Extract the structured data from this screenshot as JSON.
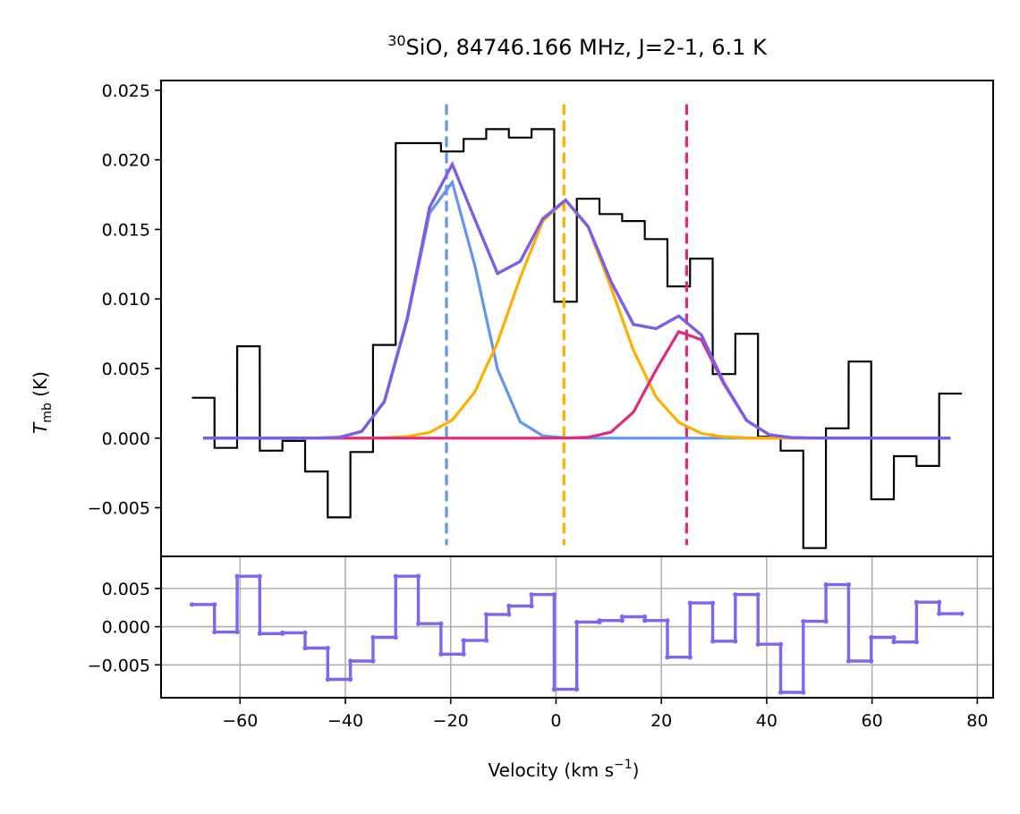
{
  "chart_data": {
    "type": "line",
    "title": {
      "isotope": "30",
      "text": "SiO, 84746.166 MHz, J=2-1, 6.1 K"
    },
    "xlabel": {
      "text": "Velocity (km s",
      "sup": "−1",
      "close": ")"
    },
    "ylabel": {
      "symbol": "T",
      "sub": "mb",
      "unit": " (K)"
    },
    "xlim": [
      -75,
      83
    ],
    "x_ticks": [
      -60,
      -40,
      -20,
      0,
      20,
      40,
      60,
      80
    ],
    "x_tick_labels": [
      "−60",
      "−40",
      "−20",
      "0",
      "20",
      "40",
      "60",
      "80"
    ],
    "main_panel": {
      "ylim": [
        -0.0085,
        0.0257
      ],
      "y_ticks": [
        -0.005,
        0.0,
        0.005,
        0.01,
        0.015,
        0.02,
        0.025
      ],
      "y_tick_labels": [
        "−0.005",
        "0.000",
        "0.005",
        "0.010",
        "0.015",
        "0.020",
        "0.025"
      ],
      "grid": false,
      "spectrum": {
        "color": "#000000",
        "style": "steps",
        "bin_width": 4.29,
        "x": [
          -67.0,
          -62.7,
          -58.4,
          -54.1,
          -49.8,
          -45.5,
          -41.2,
          -36.9,
          -32.6,
          -28.3,
          -24.0,
          -19.7,
          -15.4,
          -11.1,
          -6.8,
          -2.5,
          1.8,
          6.1,
          10.4,
          14.7,
          19.0,
          23.3,
          27.6,
          31.9,
          36.2,
          40.5,
          44.8,
          49.1,
          53.4,
          57.7,
          62.0,
          66.3,
          70.6,
          74.9
        ],
        "y": [
          0.0029,
          -0.0007,
          0.0066,
          -0.0009,
          -0.0002,
          -0.0024,
          -0.0057,
          -0.001,
          0.0067,
          0.0212,
          0.0212,
          0.0206,
          0.0215,
          0.0222,
          0.0216,
          0.0222,
          0.0098,
          0.0172,
          0.0161,
          0.0156,
          0.0143,
          0.0109,
          0.0129,
          0.0046,
          0.0075,
          0.0001,
          -0.0009,
          -0.0079,
          0.0007,
          0.0055,
          -0.0044,
          -0.0013,
          -0.002,
          0.0032
        ]
      },
      "components": [
        {
          "color": "#6495ed",
          "center": -20.8,
          "amplitude": 0.0187,
          "fwhm": 14.0
        },
        {
          "color": "#ffae00",
          "center": 1.5,
          "amplitude": 0.0171,
          "fwhm": 22.0
        },
        {
          "color": "#e0297e",
          "center": 24.8,
          "amplitude": 0.0079,
          "fwhm": 14.0
        }
      ],
      "total_fit_color": "#7b5ee8",
      "vlines": [
        {
          "x": -20.8,
          "color": "#6495ed"
        },
        {
          "x": 1.5,
          "color": "#ffae00"
        },
        {
          "x": 24.8,
          "color": "#e0297e"
        }
      ]
    },
    "residual_panel": {
      "ylim": [
        -0.0093,
        0.0092
      ],
      "y_ticks": [
        -0.005,
        0.0,
        0.005
      ],
      "y_tick_labels": [
        "−0.005",
        "0.000",
        "0.005"
      ],
      "grid": true,
      "color": "#7b68ee",
      "x": [
        -67.0,
        -62.7,
        -58.4,
        -54.1,
        -49.8,
        -45.5,
        -41.2,
        -36.9,
        -32.6,
        -28.3,
        -24.0,
        -19.7,
        -15.4,
        -11.1,
        -6.8,
        -2.5,
        1.8,
        6.1,
        10.4,
        14.7,
        19.0,
        23.3,
        27.6,
        31.9,
        36.2,
        40.5,
        44.8,
        49.1,
        53.4,
        57.7,
        62.0,
        66.3,
        70.6,
        74.9
      ],
      "y": [
        0.0029,
        -0.0007,
        0.0066,
        -0.0009,
        -0.0008,
        -0.0028,
        -0.0069,
        -0.0045,
        -0.0014,
        0.0066,
        0.0004,
        -0.0036,
        -0.0018,
        0.0016,
        0.0027,
        0.0042,
        -0.0082,
        0.0006,
        0.0008,
        0.0013,
        0.0008,
        -0.004,
        0.0031,
        -0.0019,
        0.0042,
        -0.0023,
        -0.0086,
        0.0007,
        0.0055,
        -0.0045,
        -0.0014,
        -0.002,
        0.0032,
        0.0017
      ]
    }
  }
}
